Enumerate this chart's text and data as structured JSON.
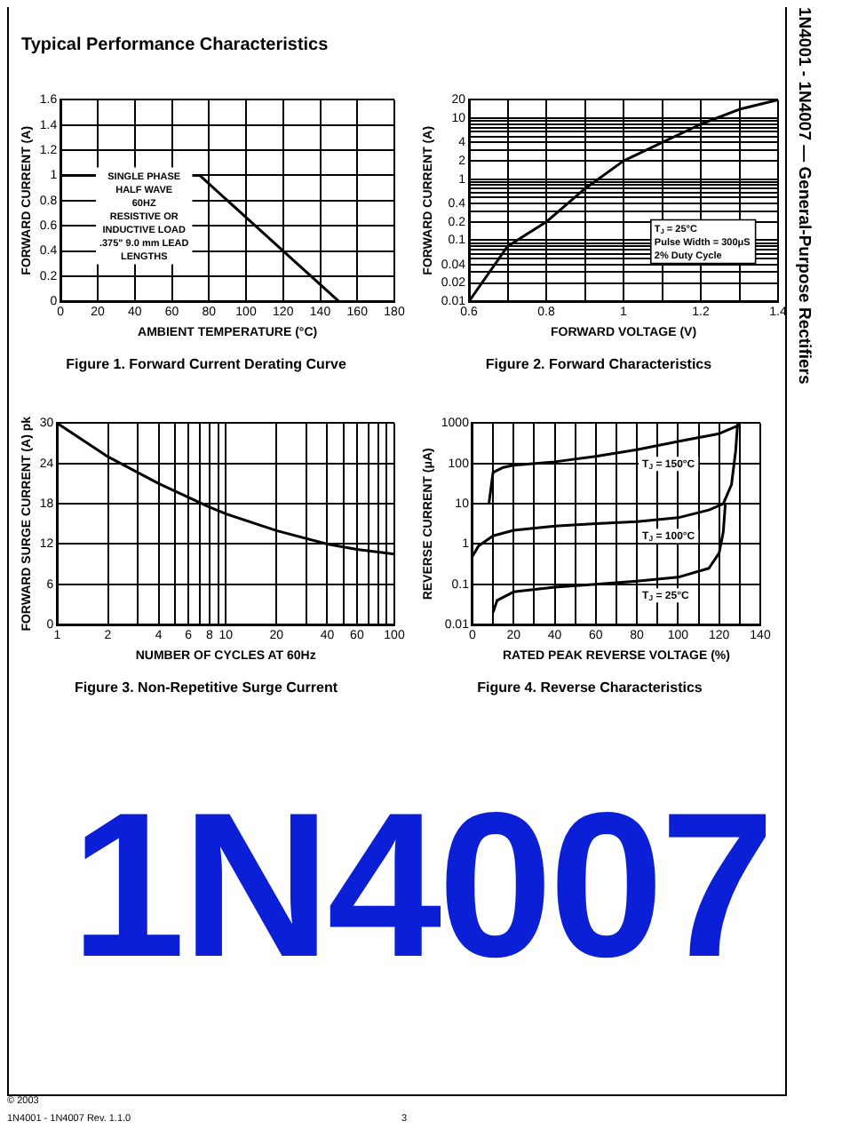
{
  "chart_data": [
    {
      "type": "line",
      "title": "Figure 1. Forward Current Derating Curve",
      "xlabel": "AMBIENT TEMPERATURE (°C)",
      "ylabel": "FORWARD CURRENT (A)",
      "x": [
        0,
        75,
        150
      ],
      "series": [
        {
          "color": "#000000",
          "values": [
            1,
            1,
            0
          ]
        }
      ],
      "xlim": [
        0,
        180
      ],
      "xticks": [
        0,
        20,
        40,
        60,
        80,
        100,
        120,
        140,
        160,
        180
      ],
      "ylim": [
        0,
        1.6
      ],
      "yticks": [
        0,
        0.2,
        0.4,
        0.6,
        0.8,
        1,
        1.2,
        1.4,
        1.6
      ],
      "grid": true,
      "legend": false,
      "marker": "none",
      "line_style": "solid",
      "annotations": [
        "SINGLE PHASE\nHALF WAVE\n60HZ\nRESISTIVE OR\nINDUCTIVE LOAD\n.375\" 9.0 mm LEAD\nLENGTHS"
      ]
    },
    {
      "type": "line",
      "title": "Figure 2. Forward Characteristics",
      "xlabel": "FORWARD VOLTAGE (V)",
      "ylabel": "FORWARD CURRENT (A)",
      "x": [
        0.6,
        0.7,
        0.8,
        0.9,
        1.0,
        1.1,
        1.2,
        1.3,
        1.4
      ],
      "series": [
        {
          "color": "#000000",
          "values": [
            0.01,
            0.08,
            0.2,
            0.7,
            2,
            4,
            8,
            14,
            20
          ]
        }
      ],
      "log": "y",
      "xlim": [
        0.6,
        1.4
      ],
      "xticks": [
        0.6,
        {
          "value": 0.7,
          "label": null
        },
        0.8,
        {
          "value": 0.9,
          "label": null
        },
        1,
        {
          "value": 1.1,
          "label": null
        },
        1.2,
        {
          "value": 1.3,
          "label": null
        },
        1.4
      ],
      "ylim": [
        0.01,
        20
      ],
      "yticks": [
        0.01,
        0.02,
        {
          "value": 0.03,
          "label": null
        },
        0.04,
        {
          "value": 0.05,
          "label": null
        },
        {
          "value": 0.06,
          "label": null
        },
        {
          "value": 0.07,
          "label": null
        },
        {
          "value": 0.08,
          "label": null
        },
        {
          "value": 0.09,
          "label": null
        },
        0.1,
        0.2,
        {
          "value": 0.3,
          "label": null
        },
        0.4,
        {
          "value": 0.5,
          "label": null
        },
        {
          "value": 0.6,
          "label": null
        },
        {
          "value": 0.7,
          "label": null
        },
        {
          "value": 0.8,
          "label": null
        },
        {
          "value": 0.9,
          "label": null
        },
        1,
        2,
        {
          "value": 3,
          "label": null
        },
        4,
        {
          "value": 5,
          "label": null
        },
        {
          "value": 6,
          "label": null
        },
        {
          "value": 7,
          "label": null
        },
        {
          "value": 8,
          "label": null
        },
        {
          "value": 9,
          "label": null
        },
        10,
        20
      ],
      "grid": true,
      "legend": false,
      "marker": "none",
      "line_style": "solid",
      "annotations": [
        "T$_{J}$ = 25°C\nPulse Width = 300μS\n2% Duty Cycle"
      ]
    },
    {
      "type": "line",
      "title": "Figure 3. Non-Repetitive Surge Current",
      "xlabel": "NUMBER OF CYCLES AT 60Hz",
      "ylabel": "FORWARD SURGE CURRENT (A) pk",
      "x": [
        1,
        2,
        4,
        8,
        10,
        20,
        40,
        60,
        100
      ],
      "series": [
        {
          "color": "#000000",
          "values": [
            30,
            25,
            21,
            17.5,
            16.5,
            14,
            12,
            11.2,
            10.5
          ]
        }
      ],
      "log": "x",
      "xlim": [
        1,
        100
      ],
      "xticks": [
        1,
        2,
        {
          "value": 3,
          "label": null
        },
        4,
        {
          "value": 5,
          "label": null
        },
        6,
        {
          "value": 7,
          "label": null
        },
        8,
        {
          "value": 9,
          "label": null
        },
        10,
        20,
        {
          "value": 30,
          "label": null
        },
        40,
        {
          "value": 50,
          "label": null
        },
        60,
        {
          "value": 70,
          "label": null
        },
        {
          "value": 80,
          "label": null
        },
        {
          "value": 90,
          "label": null
        },
        100
      ],
      "ylim": [
        0,
        30
      ],
      "yticks": [
        0,
        6,
        12,
        18,
        24,
        30
      ],
      "grid": true,
      "legend": false,
      "marker": "none",
      "line_style": "solid"
    },
    {
      "type": "line",
      "title": "Figure 4. Reverse Characteristics",
      "xlabel": "RATED PEAK REVERSE VOLTAGE (%)",
      "ylabel": "REVERSE CURRENT (μA)",
      "log": "y",
      "xlim": [
        0,
        140
      ],
      "xticks": [
        0,
        {
          "value": 10,
          "label": null
        },
        20,
        {
          "value": 30,
          "label": null
        },
        40,
        {
          "value": 50,
          "label": null
        },
        60,
        {
          "value": 70,
          "label": null
        },
        80,
        {
          "value": 90,
          "label": null
        },
        100,
        {
          "value": 110,
          "label": null
        },
        120,
        {
          "value": 130,
          "label": null
        },
        140
      ],
      "ylim": [
        0.01,
        1000
      ],
      "yticks": [
        0.01,
        0.1,
        1,
        10,
        100,
        1000
      ],
      "grid": true,
      "legend": false,
      "marker": "none",
      "line_style": "solid",
      "series": [
        {
          "name": "T$_{J}$ = 150°C",
          "color": "#000000",
          "x": [
            8,
            10,
            15,
            20,
            40,
            60,
            80,
            100,
            120,
            130
          ],
          "values": [
            10,
            60,
            80,
            90,
            110,
            150,
            220,
            350,
            550,
            900
          ]
        },
        {
          "name": "T$_{J}$ = 100°C",
          "color": "#000000",
          "x": [
            0,
            3,
            10,
            20,
            40,
            60,
            80,
            100,
            115,
            122,
            126,
            128,
            129
          ],
          "values": [
            0.5,
            0.9,
            1.6,
            2.2,
            2.8,
            3.2,
            3.6,
            4.5,
            7,
            10,
            30,
            200,
            1000
          ]
        },
        {
          "name": "T$_{J}$ = 25°C",
          "color": "#000000",
          "x": [
            10,
            12,
            20,
            40,
            60,
            80,
            100,
            115,
            120,
            122,
            123
          ],
          "values": [
            0.02,
            0.04,
            0.065,
            0.085,
            0.1,
            0.12,
            0.15,
            0.25,
            0.6,
            2,
            10
          ]
        }
      ]
    },
    {
      "type": "other",
      "title": "Typical Performance Characteristics",
      "annotations": [
        "1N4001 - 1N4007 — General-Purpose Rectifiers",
        "1N4007",
        "© 2003",
        "1N4001 - 1N4007 Rev. 1.1.0",
        "3"
      ]
    }
  ]
}
